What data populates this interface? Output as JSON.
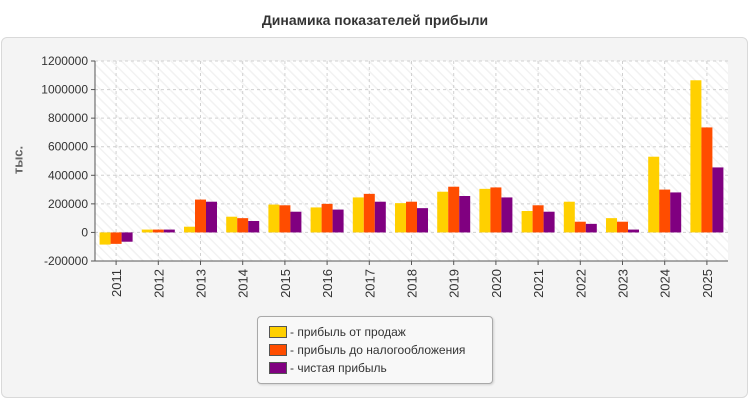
{
  "chart_data": {
    "type": "bar",
    "title": "Динамика показателей прибыли",
    "ylabel": "тыс.",
    "xlabel": "",
    "categories": [
      "2011",
      "2012",
      "2013",
      "2014",
      "2015",
      "2016",
      "2017",
      "2018",
      "2019",
      "2020",
      "2021",
      "2022",
      "2023",
      "2024",
      "2025"
    ],
    "ylim": [
      -200000,
      1200000
    ],
    "yticks": [
      -200000,
      0,
      200000,
      400000,
      600000,
      800000,
      1000000,
      1200000
    ],
    "ytick_labels": [
      "-200000",
      "0",
      "200000",
      "400000",
      "600000",
      "800000",
      "1000000",
      "1200000"
    ],
    "grid": true,
    "legend_position": "bottom-center",
    "series": [
      {
        "name": "- прибыль от продаж",
        "color": "#ffd000",
        "values": [
          -85000,
          20000,
          40000,
          110000,
          195000,
          175000,
          245000,
          205000,
          285000,
          305000,
          150000,
          215000,
          100000,
          530000,
          1065000
        ]
      },
      {
        "name": "- прибыль до налогообложения",
        "color": "#ff4d00",
        "values": [
          -80000,
          20000,
          230000,
          100000,
          190000,
          200000,
          270000,
          215000,
          320000,
          315000,
          190000,
          75000,
          75000,
          300000,
          735000
        ]
      },
      {
        "name": "- чистая прибыль",
        "color": "#800080",
        "values": [
          -65000,
          20000,
          215000,
          80000,
          145000,
          160000,
          215000,
          170000,
          255000,
          245000,
          145000,
          60000,
          20000,
          280000,
          455000
        ]
      }
    ]
  }
}
